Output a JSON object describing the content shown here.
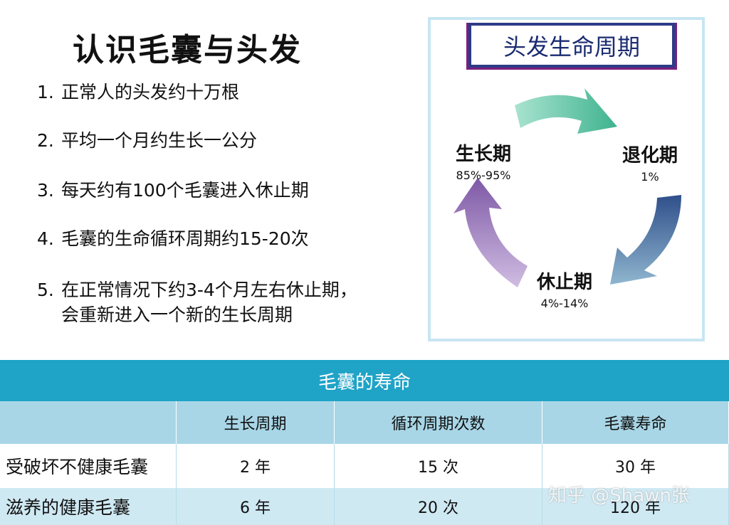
{
  "title": "认识毛囊与头发",
  "facts": [
    {
      "num": "1.",
      "text": "正常人的头发约十万根",
      "cont": ""
    },
    {
      "num": "2.",
      "text": "平均一个月约生长一公分",
      "cont": ""
    },
    {
      "num": "3.",
      "text": "每天约有100个毛囊进入休止期",
      "cont": ""
    },
    {
      "num": "4.",
      "text": "毛囊的生命循环周期约15-20次",
      "cont": ""
    },
    {
      "num": "5.",
      "text": "在正常情况下约3-4个月左右休止期，",
      "cont": "会重新进入一个新的生长周期"
    }
  ],
  "cycle": {
    "title": "头发生命周期",
    "phases": [
      {
        "name": "生长期",
        "pct": "85%-95%"
      },
      {
        "name": "退化期",
        "pct": "1%"
      },
      {
        "name": "休止期",
        "pct": "4%-14%"
      }
    ],
    "colors": {
      "arrow_top": "#5fc4a8",
      "arrow_right": "#6f9fc0",
      "arrow_left": "#9a72b8"
    }
  },
  "table": {
    "title": "毛囊的寿命",
    "headers": [
      "",
      "生长周期",
      "循环周期次数",
      "毛囊寿命"
    ],
    "rows": [
      [
        "受破坏不健康毛囊",
        "2 年",
        "15 次",
        "30 年"
      ],
      [
        "滋养的健康毛囊",
        "6 年",
        "20 次",
        "120 年"
      ]
    ]
  },
  "watermark": "知乎 @Shawn张"
}
